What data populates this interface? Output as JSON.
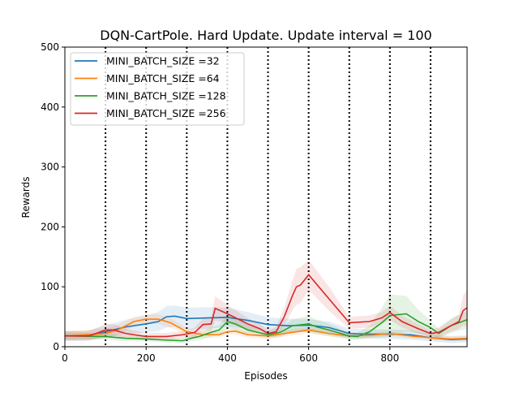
{
  "chart_data": {
    "type": "line",
    "title": "DQN-CartPole. Hard Update. Update interval = 100",
    "xlabel": "Episodes",
    "ylabel": "Rewards",
    "xlim": [
      0,
      990
    ],
    "ylim": [
      0,
      500
    ],
    "xticks": [
      0,
      200,
      400,
      600,
      800
    ],
    "yticks": [
      0,
      100,
      200,
      300,
      400,
      500
    ],
    "vlines": [
      100,
      200,
      300,
      400,
      500,
      600,
      700,
      800,
      900
    ],
    "legend_position": "top-left",
    "series": [
      {
        "name": "MINI_BATCH_SIZE =32",
        "color": "#1f77b4",
        "x": [
          0,
          50,
          100,
          150,
          200,
          230,
          250,
          270,
          300,
          350,
          400,
          450,
          500,
          550,
          600,
          650,
          700,
          750,
          800,
          850,
          900,
          950,
          990
        ],
        "y": [
          18,
          18,
          25,
          33,
          38,
          42,
          50,
          51,
          47,
          48,
          49,
          44,
          37,
          35,
          36,
          32,
          22,
          21,
          21,
          20,
          15,
          12,
          13
        ],
        "std": [
          8,
          8,
          10,
          12,
          14,
          16,
          18,
          18,
          18,
          18,
          16,
          14,
          12,
          12,
          10,
          10,
          8,
          8,
          8,
          8,
          6,
          6,
          6
        ]
      },
      {
        "name": "MINI_BATCH_SIZE =64",
        "color": "#ff7f0e",
        "x": [
          0,
          50,
          100,
          130,
          170,
          200,
          230,
          260,
          300,
          340,
          380,
          400,
          420,
          450,
          500,
          550,
          600,
          650,
          700,
          750,
          800,
          850,
          900,
          950,
          990
        ],
        "y": [
          18,
          20,
          22,
          28,
          42,
          46,
          46,
          40,
          25,
          20,
          20,
          25,
          26,
          20,
          18,
          23,
          28,
          22,
          18,
          19,
          22,
          18,
          15,
          13,
          14
        ],
        "std": [
          8,
          8,
          8,
          8,
          8,
          8,
          8,
          8,
          6,
          5,
          5,
          5,
          5,
          5,
          5,
          5,
          5,
          5,
          4,
          4,
          4,
          4,
          4,
          4,
          4
        ]
      },
      {
        "name": "MINI_BATCH_SIZE =128",
        "color": "#2ca02c",
        "x": [
          0,
          100,
          150,
          200,
          250,
          290,
          310,
          330,
          360,
          380,
          400,
          420,
          450,
          500,
          530,
          560,
          600,
          620,
          650,
          700,
          720,
          750,
          780,
          800,
          840,
          870,
          900,
          920,
          950,
          990
        ],
        "y": [
          18,
          17,
          14,
          13,
          11,
          10,
          14,
          17,
          24,
          28,
          42,
          38,
          28,
          20,
          24,
          35,
          38,
          33,
          28,
          18,
          17,
          25,
          40,
          52,
          55,
          42,
          32,
          22,
          35,
          45
        ],
        "std": [
          6,
          5,
          5,
          4,
          4,
          4,
          5,
          6,
          8,
          8,
          12,
          10,
          8,
          6,
          8,
          10,
          14,
          12,
          10,
          6,
          6,
          10,
          25,
          35,
          30,
          20,
          12,
          8,
          12,
          15
        ]
      },
      {
        "name": "MINI_BATCH_SIZE =256",
        "color": "#d62728",
        "x": [
          0,
          60,
          100,
          120,
          150,
          200,
          250,
          290,
          320,
          340,
          360,
          370,
          400,
          450,
          480,
          500,
          520,
          540,
          560,
          570,
          580,
          600,
          650,
          700,
          750,
          780,
          800,
          830,
          870,
          900,
          920,
          950,
          970,
          980,
          990
        ],
        "y": [
          18,
          18,
          28,
          28,
          22,
          17,
          17,
          20,
          24,
          37,
          38,
          64,
          55,
          38,
          30,
          22,
          25,
          50,
          85,
          100,
          103,
          120,
          80,
          40,
          42,
          48,
          57,
          42,
          30,
          22,
          24,
          35,
          42,
          60,
          65
        ],
        "std": [
          8,
          8,
          10,
          10,
          8,
          6,
          6,
          6,
          8,
          10,
          12,
          20,
          15,
          10,
          8,
          6,
          8,
          15,
          25,
          30,
          30,
          25,
          20,
          10,
          10,
          10,
          12,
          10,
          8,
          6,
          8,
          10,
          12,
          25,
          30
        ]
      }
    ]
  }
}
